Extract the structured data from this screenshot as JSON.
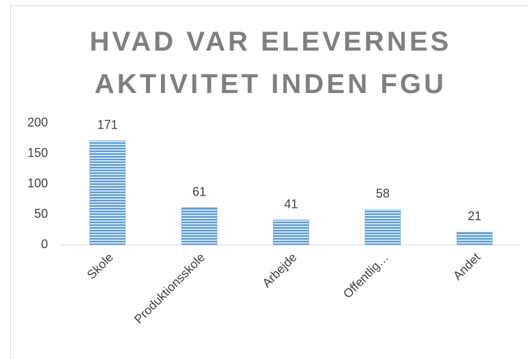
{
  "chart_data": {
    "type": "bar",
    "title": "HVAD VAR ELEVERNES AKTIVITET INDEN FGU",
    "categories": [
      "Skole",
      "Produktionsskole",
      "Arbejde",
      "Offentlig…",
      "Andet"
    ],
    "values": [
      171,
      61,
      41,
      58,
      21
    ],
    "color": "#5b9bd5",
    "ylim": [
      0,
      200
    ],
    "yticks": [
      0,
      50,
      100,
      150,
      200
    ],
    "grid": false
  }
}
